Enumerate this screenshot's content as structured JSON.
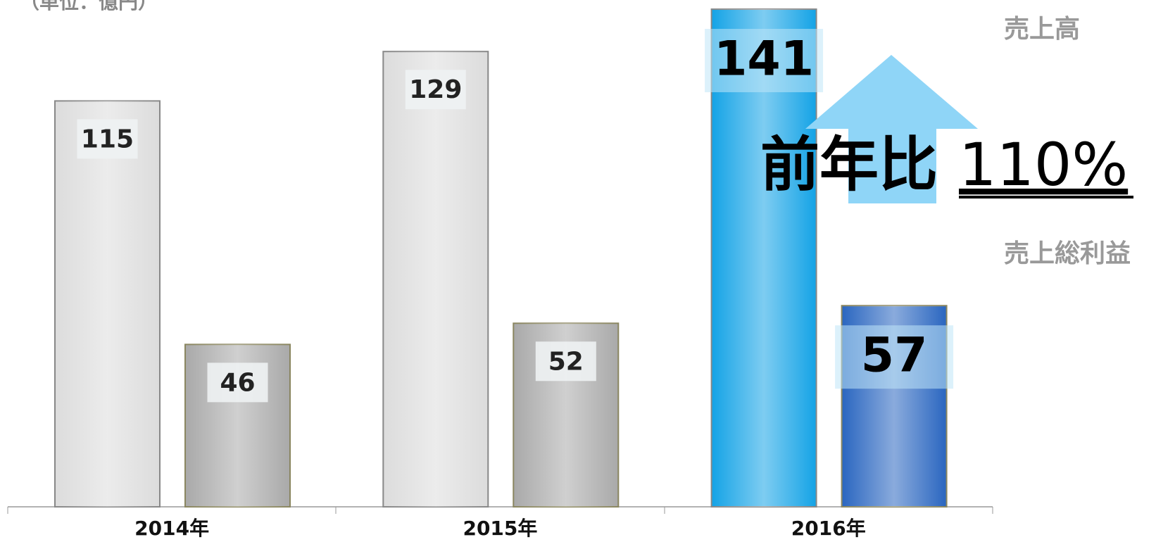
{
  "chart_data": {
    "type": "bar",
    "unit_label": "（単位：億円）",
    "categories": [
      "2014年",
      "2015年",
      "2016年"
    ],
    "series": [
      {
        "name": "売上高",
        "colors": [
          "#dcdcdc",
          "#dcdcdc",
          "#14a3e6"
        ],
        "values": [
          115,
          129,
          141
        ]
      },
      {
        "name": "売上総利益",
        "colors": [
          "#a9a9a9",
          "#a9a9a9",
          "#2a66c0"
        ],
        "values": [
          46,
          52,
          57
        ]
      }
    ],
    "annotations": [
      "前年比",
      "110%"
    ],
    "ylim": [
      0,
      143
    ]
  }
}
